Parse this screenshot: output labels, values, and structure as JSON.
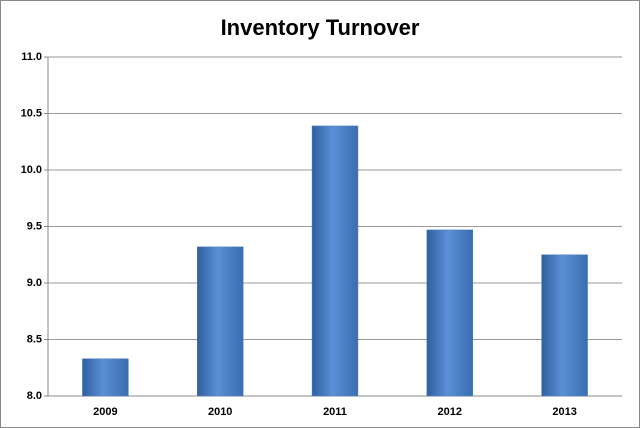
{
  "chart_data": {
    "type": "bar",
    "title": "Inventory Turnover",
    "categories": [
      "2009",
      "2010",
      "2011",
      "2012",
      "2013"
    ],
    "values": [
      8.33,
      9.32,
      10.39,
      9.47,
      9.25
    ],
    "color": "#4f81bd",
    "ylim": [
      8.0,
      11.0
    ],
    "yticks": [
      {
        "value": 8,
        "label": "8.0"
      },
      8.5,
      {
        "value": 9,
        "label": "9.0"
      },
      9.5,
      {
        "value": 10,
        "label": "10.0"
      },
      10.5,
      {
        "value": 11,
        "label": "11.0"
      }
    ],
    "grid": true
  }
}
